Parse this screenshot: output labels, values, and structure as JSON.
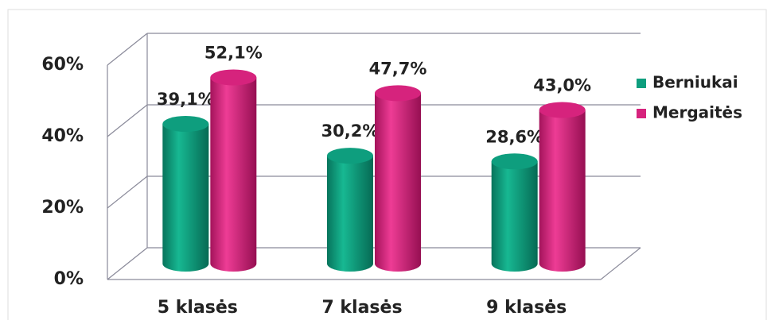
{
  "chart_data": {
    "type": "bar3d",
    "categories": [
      "5 klasės",
      "7 klasės",
      "9 klasės"
    ],
    "series": [
      {
        "name": "Berniukai",
        "color": "#0e9e7e",
        "values": [
          39.1,
          30.2,
          28.6
        ],
        "value_labels": [
          "39,1%",
          "30,2%",
          "28,6%"
        ]
      },
      {
        "name": "Mergaitės",
        "color": "#d6237d",
        "values": [
          52.1,
          47.7,
          43.0
        ],
        "value_labels": [
          "52,1%",
          "47,7%",
          "43,0%"
        ]
      }
    ],
    "ylim": [
      0,
      60
    ],
    "yticks": [
      {
        "value": 0,
        "label": "0%"
      },
      {
        "value": 20,
        "label": "20%"
      },
      {
        "value": 40,
        "label": "40%"
      },
      {
        "value": 60,
        "label": "60%"
      }
    ],
    "grid": true,
    "legend": "right"
  }
}
